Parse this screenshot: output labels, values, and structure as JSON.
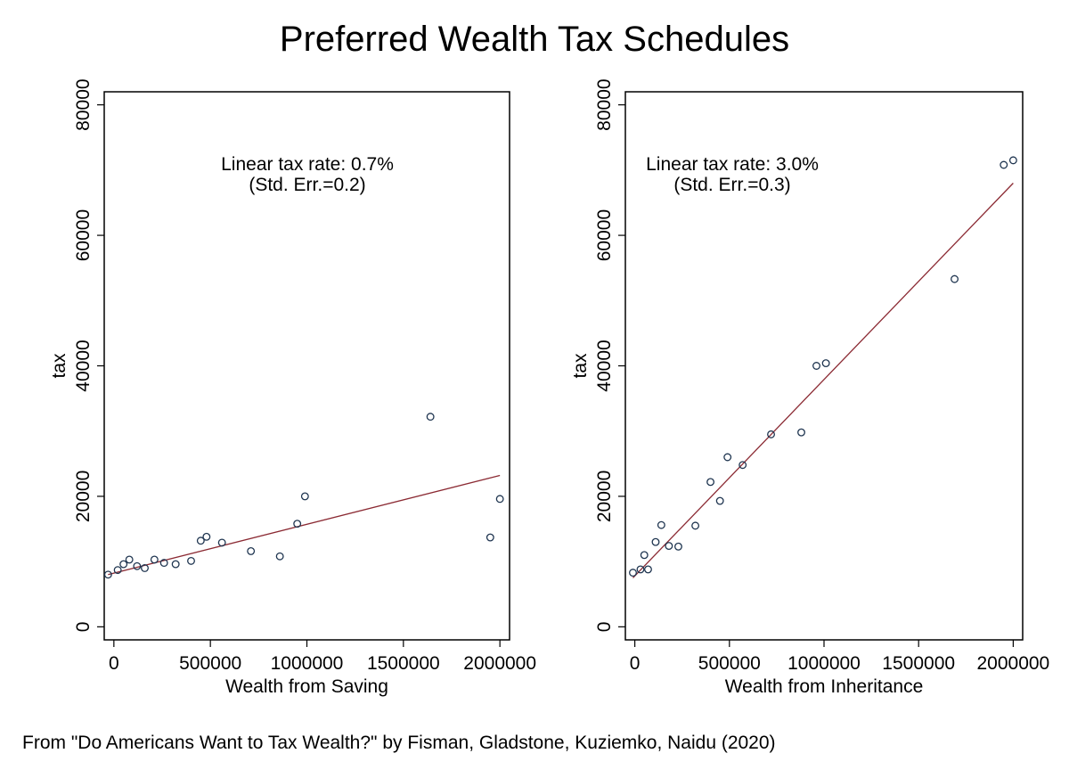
{
  "title": "Preferred Wealth Tax Schedules",
  "caption": "From \"Do Americans Want to Tax Wealth?\" by Fisman, Gladstone, Kuziemko, Naidu (2020)",
  "colors": {
    "fit_line": "#8b2a33",
    "marker": "#1f3550",
    "frame": "#000000"
  },
  "chart_data": [
    {
      "type": "scatter",
      "xlabel": "Wealth from Saving",
      "ylabel": "tax",
      "xlim": [
        -50000,
        2050000
      ],
      "ylim": [
        -2000,
        82000
      ],
      "x_ticks": [
        0,
        500000,
        1000000,
        1500000,
        2000000
      ],
      "x_tick_labels": [
        "0",
        "500000",
        "1000000",
        "1500000",
        "2000000"
      ],
      "y_ticks": [
        0,
        20000,
        40000,
        60000,
        80000
      ],
      "y_tick_labels": [
        "0",
        "20000",
        "40000",
        "60000",
        "80000"
      ],
      "grid": false,
      "annotation": [
        "Linear tax rate:  0.7%",
        "(Std. Err.=0.2)"
      ],
      "fit_line": {
        "x": [
          -30000,
          2000000
        ],
        "y": [
          8000,
          23200
        ]
      },
      "points": {
        "x": [
          -30000,
          20000,
          50000,
          80000,
          120000,
          160000,
          210000,
          260000,
          320000,
          400000,
          450000,
          480000,
          560000,
          710000,
          860000,
          950000,
          990000,
          1640000,
          1950000,
          2000000
        ],
        "y": [
          8000,
          8700,
          9600,
          10300,
          9300,
          9000,
          10300,
          9800,
          9600,
          10100,
          13200,
          13800,
          12900,
          11600,
          10800,
          15800,
          20000,
          32200,
          13700,
          19600
        ]
      }
    },
    {
      "type": "scatter",
      "xlabel": "Wealth from Inheritance",
      "ylabel": "tax",
      "xlim": [
        -50000,
        2050000
      ],
      "ylim": [
        -2000,
        82000
      ],
      "x_ticks": [
        0,
        500000,
        1000000,
        1500000,
        2000000
      ],
      "x_tick_labels": [
        "0",
        "500000",
        "1000000",
        "1500000",
        "2000000"
      ],
      "y_ticks": [
        0,
        20000,
        40000,
        60000,
        80000
      ],
      "y_tick_labels": [
        "0",
        "20000",
        "40000",
        "60000",
        "80000"
      ],
      "grid": false,
      "annotation": [
        "Linear tax rate: 3.0%",
        "(Std. Err.=0.3)"
      ],
      "fit_line": {
        "x": [
          -10000,
          2000000
        ],
        "y": [
          7500,
          68000
        ]
      },
      "points": {
        "x": [
          -10000,
          30000,
          50000,
          70000,
          110000,
          140000,
          180000,
          230000,
          320000,
          400000,
          450000,
          490000,
          570000,
          720000,
          880000,
          960000,
          1010000,
          1690000,
          1950000,
          2000000
        ],
        "y": [
          8300,
          8800,
          11000,
          8800,
          13000,
          15600,
          12400,
          12300,
          15500,
          22200,
          19300,
          26000,
          24800,
          29500,
          29800,
          40000,
          40400,
          53300,
          70800,
          71500
        ]
      }
    }
  ]
}
